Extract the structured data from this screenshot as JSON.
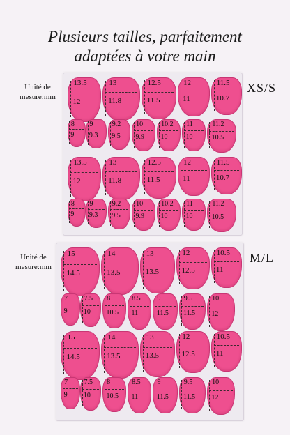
{
  "title": {
    "line1": "Plusieurs tailles, parfaitement",
    "line2": "adaptées à votre main"
  },
  "colors": {
    "nail_fill": "#ee4f8f",
    "nail_border": "#c93674",
    "background": "#f6f2f6"
  },
  "panel_xs": {
    "unit_label_line1": "Unité de",
    "unit_label_line2": "mesure:mm",
    "size_label": "XS/S",
    "rows": [
      [
        {
          "w": "13.5",
          "h": "12"
        },
        {
          "w": "13",
          "h": "11.8"
        },
        {
          "w": "12.5",
          "h": "11.5"
        },
        {
          "w": "12",
          "h": "11"
        },
        {
          "w": "11.5",
          "h": "10.7"
        }
      ],
      [
        {
          "w": "8",
          "h": "9"
        },
        {
          "w": "9",
          "h": "9.3"
        },
        {
          "w": "9.2",
          "h": "9.5"
        },
        {
          "w": "10",
          "h": "9.9"
        },
        {
          "w": "10.2",
          "h": "10"
        },
        {
          "w": "11",
          "h": "10"
        },
        {
          "w": "11.2",
          "h": "10.5"
        }
      ],
      [
        {
          "w": "13.5",
          "h": "12"
        },
        {
          "w": "13",
          "h": "11.8"
        },
        {
          "w": "12.5",
          "h": "11.5"
        },
        {
          "w": "12",
          "h": "11"
        },
        {
          "w": "11.5",
          "h": "10.7"
        }
      ],
      [
        {
          "w": "8",
          "h": "9"
        },
        {
          "w": "9",
          "h": "9.3"
        },
        {
          "w": "9.2",
          "h": "9.5"
        },
        {
          "w": "10",
          "h": "9.9"
        },
        {
          "w": "10.2",
          "h": "10"
        },
        {
          "w": "11",
          "h": "10"
        },
        {
          "w": "11.2",
          "h": "10.5"
        }
      ]
    ]
  },
  "panel_ml": {
    "unit_label_line1": "Unité de",
    "unit_label_line2": "mesure:mm",
    "size_label": "M/L",
    "rows": [
      [
        {
          "w": "15",
          "h": "14.5"
        },
        {
          "w": "14",
          "h": "13.5"
        },
        {
          "w": "13",
          "h": "13.5"
        },
        {
          "w": "12",
          "h": "12.5"
        },
        {
          "w": "10.5",
          "h": "11"
        }
      ],
      [
        {
          "w": "7",
          "h": "9"
        },
        {
          "w": "7.5",
          "h": "10"
        },
        {
          "w": "8",
          "h": "10.5"
        },
        {
          "w": "8.5",
          "h": "11"
        },
        {
          "w": "9",
          "h": "11.5"
        },
        {
          "w": "9.5",
          "h": "11.5"
        },
        {
          "w": "10",
          "h": "12"
        }
      ],
      [
        {
          "w": "15",
          "h": "14.5"
        },
        {
          "w": "14",
          "h": "13.5"
        },
        {
          "w": "13",
          "h": "13.5"
        },
        {
          "w": "12",
          "h": "12.5"
        },
        {
          "w": "10.5",
          "h": "11"
        }
      ],
      [
        {
          "w": "7",
          "h": "9"
        },
        {
          "w": "7.5",
          "h": "10"
        },
        {
          "w": "8",
          "h": "10.5"
        },
        {
          "w": "8.5",
          "h": "11"
        },
        {
          "w": "9",
          "h": "11.5"
        },
        {
          "w": "9.5",
          "h": "11.5"
        },
        {
          "w": "10",
          "h": "12"
        }
      ]
    ]
  }
}
